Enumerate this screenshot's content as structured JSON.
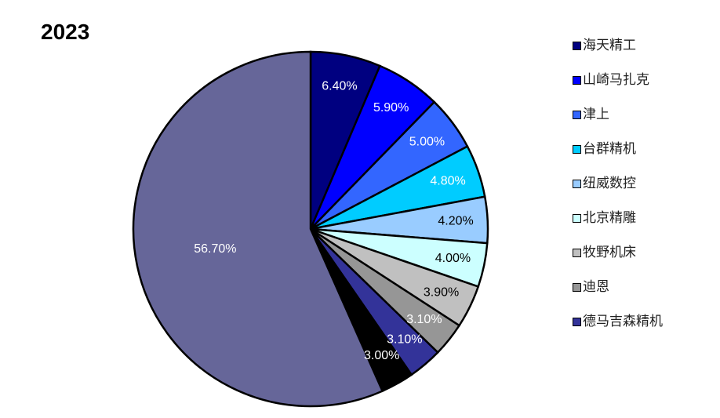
{
  "chart_data": {
    "type": "pie",
    "title": "2023",
    "categories": [
      "海天精工",
      "山崎马扎克",
      "津上",
      "台群精机",
      "纽威数控",
      "北京精雕",
      "牧野机床",
      "迪恩",
      "德马吉森精机",
      null,
      null
    ],
    "values": [
      6.4,
      5.9,
      5.0,
      4.8,
      4.2,
      4.0,
      3.9,
      3.1,
      3.1,
      3.0,
      56.7
    ],
    "value_labels": [
      "6.40%",
      "5.90%",
      "5.00%",
      "4.80%",
      "4.20%",
      "4.00%",
      "3.90%",
      "3.10%",
      "3.10%",
      "3.00%",
      "56.70%"
    ],
    "colors": [
      "#000080",
      "#0000ff",
      "#3366ff",
      "#00ccff",
      "#99ccff",
      "#ccffff",
      "#c0c0c0",
      "#969696",
      "#333399",
      "#000000",
      "#666699"
    ]
  }
}
